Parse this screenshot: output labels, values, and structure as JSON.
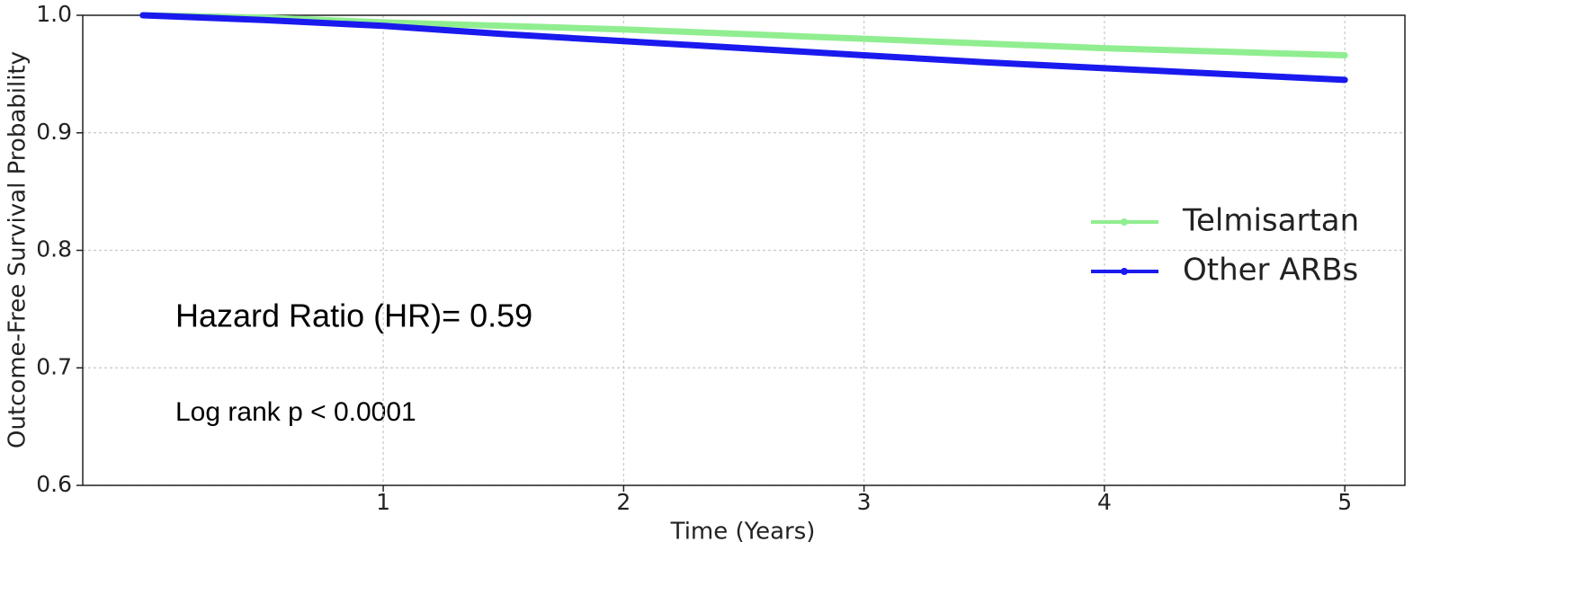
{
  "chart_data": {
    "type": "line",
    "x": [
      0,
      0.5,
      1,
      1.5,
      2,
      2.5,
      3,
      3.5,
      4,
      4.5,
      5
    ],
    "series": [
      {
        "name": "Telmisartan",
        "color": "#90ee90",
        "values": [
          1.0,
          0.998,
          0.994,
          0.991,
          0.988,
          0.984,
          0.98,
          0.976,
          0.972,
          0.969,
          0.966
        ]
      },
      {
        "name": "Other ARBs",
        "color": "#1a1aee",
        "values": [
          1.0,
          0.996,
          0.991,
          0.984,
          0.978,
          0.972,
          0.966,
          0.96,
          0.955,
          0.95,
          0.945
        ]
      }
    ],
    "xlabel": "Time (Years)",
    "ylabel": "Outcome-Free Survival Probability",
    "xlim": [
      -0.25,
      5.25
    ],
    "xticks": [
      1,
      2,
      3,
      4,
      5
    ],
    "ylim": [
      0.6,
      1.0
    ],
    "yticks": [
      0.6,
      0.7,
      0.8,
      0.9,
      {
        "value": 1,
        "label": "1.0"
      }
    ],
    "grid": true,
    "legend": "right",
    "annotations": [
      "Hazard Ratio (HR)=  0.59",
      "Log rank p < 0.0001"
    ]
  }
}
